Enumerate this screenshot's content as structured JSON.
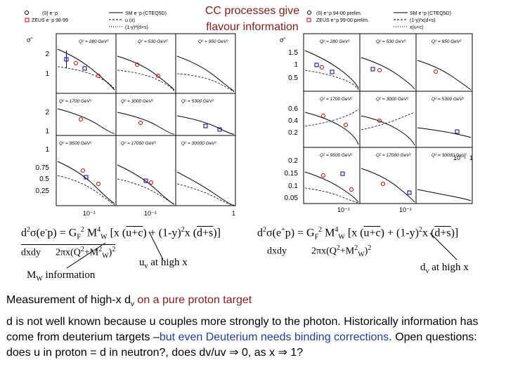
{
  "slide": {
    "title_line1": "CC processes give",
    "title_line2": "flavour information"
  },
  "left_figure": {
    "legend": [
      "(0) e⁻p",
      "ZEUS e⁻p 98-99",
      "SM e⁻p (CTEQ5D)",
      "u (x)",
      "(1-y)²(d+s)"
    ],
    "ylabel": "σ̃",
    "y_ticks_row1": [
      "2",
      "1"
    ],
    "y_ticks_row2": [
      "2",
      "1"
    ],
    "y_ticks_row3": [
      "1",
      "0.75",
      "0.5",
      "0.25"
    ],
    "x_ticks": [
      "10⁻¹",
      "10⁻¹",
      "1"
    ],
    "panel_q2": [
      [
        "Q² = 280 GeV²",
        "Q² = 530 GeV²",
        "Q² = 950 GeV²"
      ],
      [
        "Q² = 1700 GeV²",
        "Q² = 3000 GeV²",
        "Q² = 5300 GeV²"
      ],
      [
        "Q² = 9500 GeV²",
        "Q² = 17000 GeV²",
        "Q² = 30000 GeV²"
      ]
    ]
  },
  "right_figure": {
    "legend": [
      "(0) e⁺p 94-00 prelim.",
      "ZEUS e⁺p 99-00 prelim.",
      "SM e⁺p (CTEQ5D)",
      "(1-y)²x(d+s)",
      "x(u+c)"
    ],
    "ylabel": "σ̃",
    "y_ticks_row1": [
      "1.5",
      "1",
      "0.5"
    ],
    "y_ticks_row2": [
      "0.6",
      "0.4",
      "0.2"
    ],
    "y_ticks_row3": [
      "0.2",
      "0.15",
      "0.1",
      "0.05"
    ],
    "x_ticks": [
      "10⁻¹",
      "10⁻¹",
      "10⁻¹",
      "1"
    ],
    "panel_q2": [
      [
        "Q² = 280 GeV²",
        "Q² = 530 GeV²",
        "Q² = 950 GeV²"
      ],
      [
        "Q² = 1700 GeV²",
        "Q² = 3000 GeV²",
        "Q² = 5300 GeV²"
      ],
      [
        "Q² = 9500 GeV²",
        "Q² = 17000 GeV²",
        "Q² = 30000 GeV²"
      ]
    ]
  },
  "annotations": {
    "mw_information": "M",
    "mw_sub": "W",
    "mw_rest": " information",
    "uv_left": "u",
    "uv_left_sub": "v",
    "uv_left_rest": " at high x",
    "dv_right": "d",
    "dv_right_sub": "v",
    "dv_right_rest": " at high x"
  },
  "text": {
    "line1_main": "Measurement of high-x d",
    "line1_sub": "v",
    "line1_red": " on a pure proton target",
    "p2_a": "d is not well known because u couples more strongly to the photon. Historically information has come from deuterium targets –",
    "p2_b": "but even Deuterium needs binding corrections",
    "p2_c": ".  Open questions: does u in proton = d in neutron?, does dv/uv ⇒ 0, as x ⇒ 1?"
  }
}
